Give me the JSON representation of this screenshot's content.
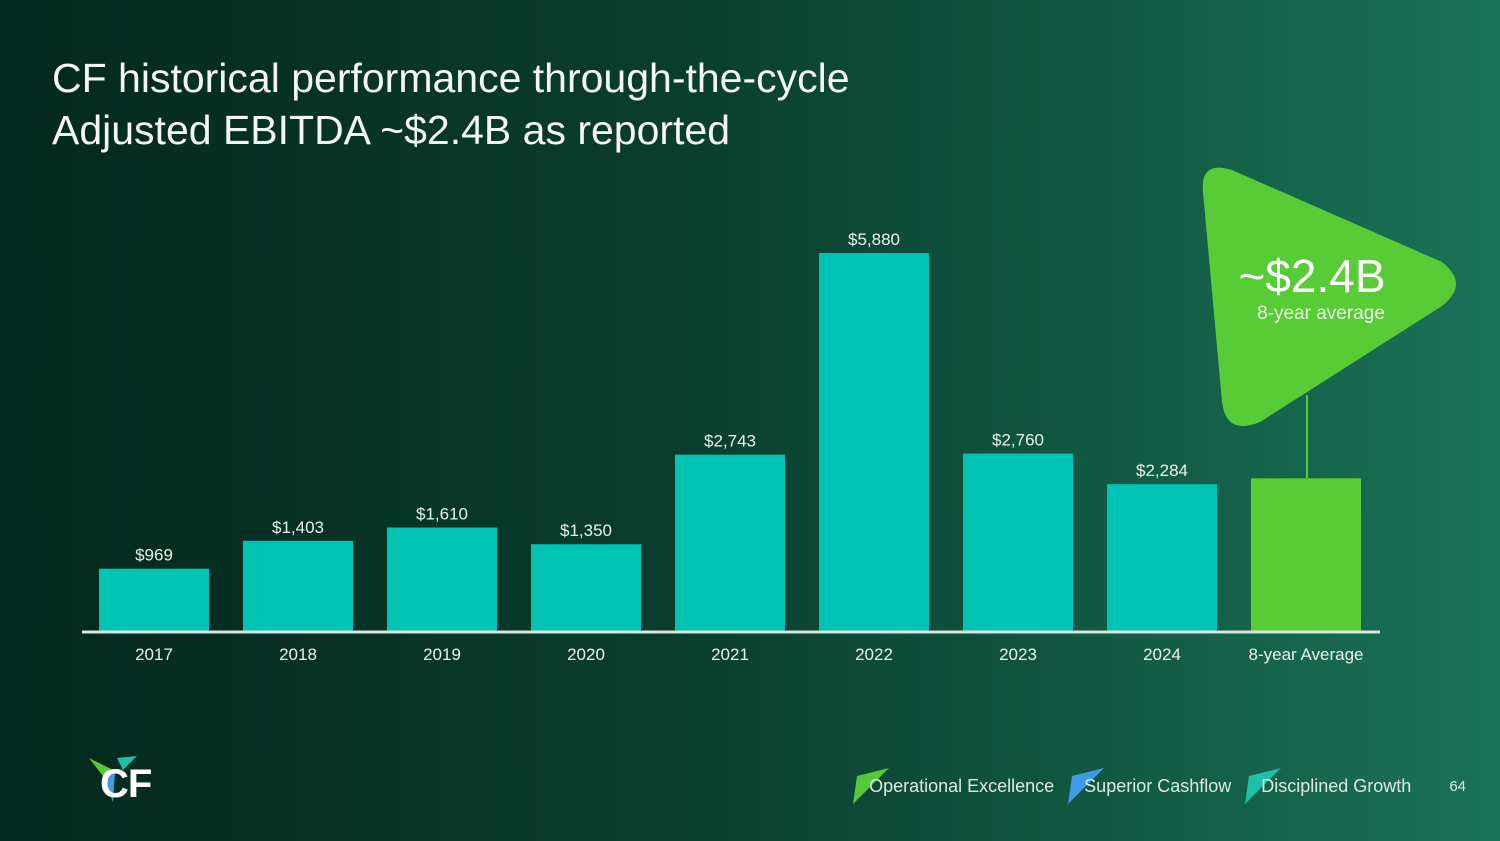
{
  "slide": {
    "title_line1": "CF historical performance through-the-cycle",
    "title_line2": "Adjusted EBITDA ~$2.4B as reported",
    "page_number": "64"
  },
  "callout": {
    "value": "~$2.4B",
    "subtitle": "8-year average"
  },
  "footer": {
    "pillars": [
      {
        "label": "Operational Excellence",
        "color": "#55c93a"
      },
      {
        "label": "Superior Cashflow",
        "color": "#3f9be8"
      },
      {
        "label": "Disciplined Growth",
        "color": "#1fbfa9"
      }
    ]
  },
  "brand": {
    "logo_text": "CF",
    "bar_color": "#00c4b3",
    "average_color": "#57cc37"
  },
  "chart_data": {
    "type": "bar",
    "title": "Adjusted EBITDA ~$2.4B as reported",
    "categories": [
      "2017",
      "2018",
      "2019",
      "2020",
      "2021",
      "2022",
      "2023",
      "2024",
      "8-year Average"
    ],
    "values": [
      969,
      1403,
      1610,
      1350,
      2743,
      5880,
      2760,
      2284,
      2375
    ],
    "value_labels": [
      "$969",
      "$1,403",
      "$1,610",
      "$1,350",
      "$2,743",
      "$5,880",
      "$2,760",
      "$2,284",
      ""
    ],
    "highlight_index": 8,
    "xlabel": "",
    "ylabel": "",
    "ylim": [
      0,
      5880
    ],
    "grid": false
  }
}
